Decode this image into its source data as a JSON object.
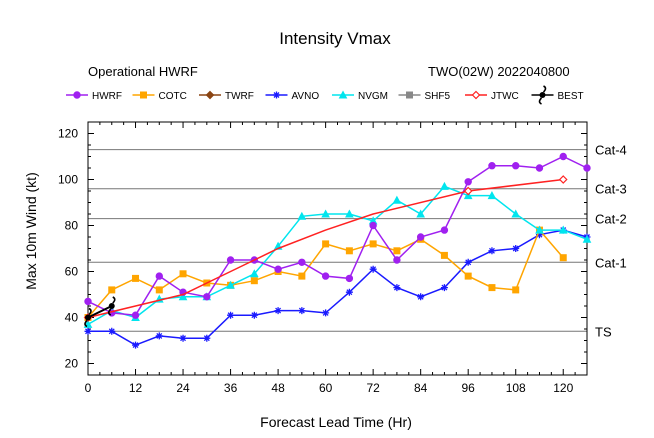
{
  "chart_data": {
    "type": "line",
    "title": "Intensity Vmax",
    "subtitle_left": "Operational HWRF",
    "subtitle_right": "TWO(02W) 2022040800",
    "xlabel": "Forecast Lead Time (Hr)",
    "ylabel": "Max 10m Wind (kt)",
    "xlim": [
      0,
      126
    ],
    "ylim": [
      15,
      125
    ],
    "xticks": [
      0,
      12,
      24,
      36,
      48,
      60,
      72,
      84,
      96,
      108,
      120
    ],
    "yticks": [
      20,
      40,
      60,
      80,
      100,
      120
    ],
    "thresholds": [
      {
        "label": "TS",
        "value": 34
      },
      {
        "label": "Cat-1",
        "value": 64
      },
      {
        "label": "Cat-2",
        "value": 83
      },
      {
        "label": "Cat-3",
        "value": 96
      },
      {
        "label": "Cat-4",
        "value": 113
      }
    ],
    "series": [
      {
        "name": "HWRF",
        "color": "#a020f0",
        "marker": "circle",
        "x": [
          0,
          6,
          12,
          18,
          24,
          30,
          36,
          42,
          48,
          54,
          60,
          66,
          72,
          78,
          84,
          90,
          96,
          102,
          108,
          114,
          120,
          126
        ],
        "values": [
          47,
          42,
          41,
          58,
          51,
          49,
          65,
          65,
          61,
          64,
          58,
          57,
          80,
          65,
          75,
          78,
          99,
          106,
          106,
          105,
          110,
          105
        ]
      },
      {
        "name": "COTC",
        "color": "#ffa500",
        "marker": "square",
        "x": [
          0,
          6,
          12,
          18,
          24,
          30,
          36,
          42,
          48,
          54,
          60,
          66,
          72,
          78,
          84,
          90,
          96,
          102,
          108,
          114,
          120
        ],
        "values": [
          40,
          52,
          57,
          52,
          59,
          55,
          54,
          56,
          60,
          58,
          72,
          69,
          72,
          69,
          74,
          67,
          58,
          53,
          52,
          78,
          66
        ]
      },
      {
        "name": "TWRF",
        "color": "#8b4513",
        "marker": "diamond",
        "x": [],
        "values": []
      },
      {
        "name": "AVNO",
        "color": "#1a1aff",
        "marker": "asterisk",
        "x": [
          0,
          6,
          12,
          18,
          24,
          30,
          36,
          42,
          48,
          54,
          60,
          66,
          72,
          78,
          84,
          90,
          96,
          102,
          108,
          114,
          120,
          126
        ],
        "values": [
          34,
          34,
          28,
          32,
          31,
          31,
          41,
          41,
          43,
          43,
          42,
          51,
          61,
          53,
          49,
          53,
          64,
          69,
          70,
          76,
          78,
          75
        ]
      },
      {
        "name": "NVGM",
        "color": "#00e5ee",
        "marker": "triangle",
        "x": [
          0,
          6,
          12,
          18,
          24,
          30,
          36,
          42,
          48,
          54,
          60,
          66,
          72,
          78,
          84,
          90,
          96,
          102,
          108,
          114,
          120,
          126
        ],
        "values": [
          37,
          43,
          40,
          48,
          49,
          49,
          54,
          59,
          71,
          84,
          85,
          85,
          82,
          91,
          85,
          97,
          93,
          93,
          85,
          78,
          78,
          74
        ]
      },
      {
        "name": "SHF5",
        "color": "#888888",
        "marker": "square",
        "x": [],
        "values": []
      },
      {
        "name": "JTWC",
        "color": "#ff2222",
        "marker": "diamond",
        "x": [
          0,
          12,
          24,
          36,
          48,
          60,
          72,
          96,
          120
        ],
        "values": [
          40,
          45,
          50,
          60,
          70,
          78,
          85,
          95,
          100
        ]
      },
      {
        "name": "BEST",
        "color": "#000000",
        "marker": "cyclone",
        "x": [
          0,
          6
        ],
        "values": [
          40,
          45
        ]
      }
    ]
  }
}
